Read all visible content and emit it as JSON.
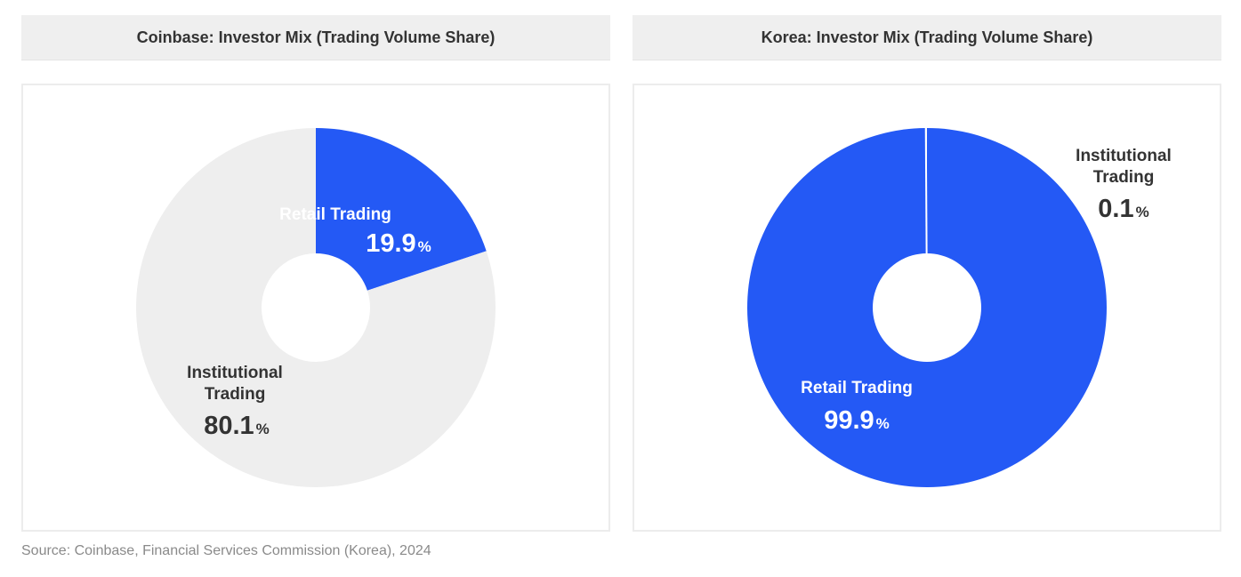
{
  "colors": {
    "retail": "#2459f5",
    "institutional": "#eeeeee",
    "title_bg": "#efefef"
  },
  "source": "Source: Coinbase, Financial Services Commission (Korea), 2024",
  "chart_data": [
    {
      "type": "pie",
      "title": "Coinbase: Investor Mix (Trading Volume Share)",
      "series": [
        {
          "name": "Retail Trading",
          "value": 19.9,
          "value_label": "19.9",
          "color": "#2459f5"
        },
        {
          "name": "Institutional Trading",
          "value": 80.1,
          "value_label": "80.1",
          "color": "#eeeeee"
        }
      ],
      "unit": "%"
    },
    {
      "type": "pie",
      "title": "Korea: Investor Mix (Trading Volume Share)",
      "series": [
        {
          "name": "Retail Trading",
          "value": 99.9,
          "value_label": "99.9",
          "color": "#2459f5"
        },
        {
          "name": "Institutional Trading",
          "value": 0.1,
          "value_label": "0.1",
          "color": "#eeeeee"
        }
      ],
      "unit": "%"
    }
  ]
}
